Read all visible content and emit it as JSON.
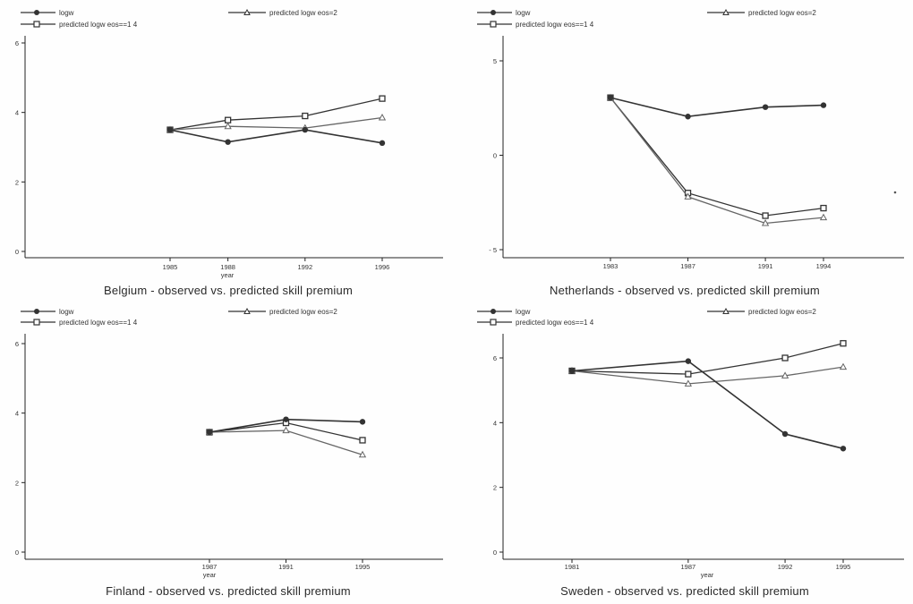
{
  "legend": {
    "series_1": "logw",
    "series_2": "predicted logw  eos=2",
    "series_3": "predicted logw  eos==1 4"
  },
  "colors": {
    "line": "#333333",
    "marker_fill": "#333333",
    "open_marker": "#ffffff"
  },
  "chart_data": [
    {
      "type": "line",
      "title": "Belgium - observed vs. predicted skill premium",
      "xlabel": "year",
      "ylabel": "",
      "x": [
        1985,
        1988,
        1992,
        1996
      ],
      "xticks": [
        "1985",
        "1988",
        "1992",
        "1996"
      ],
      "ylim": [
        0,
        6
      ],
      "yticks": [
        "0",
        "2",
        "4",
        "6"
      ],
      "series": [
        {
          "name": "logw",
          "marker": "filled-circle",
          "values": [
            3.5,
            3.15,
            3.5,
            3.12
          ]
        },
        {
          "name": "predicted logw  eos=2",
          "marker": "triangle",
          "values": [
            3.5,
            3.6,
            3.55,
            3.85
          ]
        },
        {
          "name": "predicted logw  eos==1 4",
          "marker": "square",
          "values": [
            3.5,
            3.78,
            3.9,
            4.4
          ]
        }
      ]
    },
    {
      "type": "line",
      "title": "Netherlands - observed vs. predicted skill premium",
      "xlabel": "",
      "ylabel": "",
      "x": [
        1983,
        1987,
        1991,
        1994
      ],
      "xticks": [
        "1983",
        "1987",
        "1991",
        "1994"
      ],
      "ylim": [
        -5,
        5
      ],
      "yticks": [
        "- 5",
        "0",
        "5"
      ],
      "series": [
        {
          "name": "logw",
          "marker": "filled-circle",
          "values": [
            3.05,
            2.05,
            2.55,
            2.65
          ]
        },
        {
          "name": "predicted logw  eos=2",
          "marker": "triangle",
          "values": [
            3.05,
            -2.2,
            -3.6,
            -3.3
          ]
        },
        {
          "name": "predicted logw  eos==1 4",
          "marker": "square",
          "values": [
            3.05,
            -2.0,
            -3.2,
            -2.8
          ]
        }
      ]
    },
    {
      "type": "line",
      "title": "Finland - observed vs. predicted skill premium",
      "xlabel": "year",
      "ylabel": "",
      "x": [
        1987,
        1991,
        1995
      ],
      "xticks": [
        "1987",
        "1991",
        "1995"
      ],
      "ylim": [
        0,
        6
      ],
      "yticks": [
        "0",
        "2",
        "4",
        "6"
      ],
      "series": [
        {
          "name": "logw",
          "marker": "filled-circle",
          "values": [
            3.45,
            3.82,
            3.75
          ]
        },
        {
          "name": "predicted logw  eos=2",
          "marker": "triangle",
          "values": [
            3.45,
            3.5,
            2.8
          ]
        },
        {
          "name": "predicted logw  eos==1 4",
          "marker": "square",
          "values": [
            3.45,
            3.72,
            3.22
          ]
        }
      ]
    },
    {
      "type": "line",
      "title": "Sweden - observed vs. predicted skill premium",
      "xlabel": "year",
      "ylabel": "",
      "x": [
        1981,
        1987,
        1992,
        1995
      ],
      "xticks": [
        "1981",
        "1987",
        "1992",
        "1995"
      ],
      "ylim": [
        0,
        6
      ],
      "yticks": [
        "0",
        "2",
        "4",
        "6"
      ],
      "series": [
        {
          "name": "logw",
          "marker": "filled-circle",
          "values": [
            5.6,
            5.9,
            3.65,
            3.2
          ]
        },
        {
          "name": "predicted logw  eos=2",
          "marker": "triangle",
          "values": [
            5.6,
            5.2,
            5.45,
            5.72
          ]
        },
        {
          "name": "predicted logw  eos==1 4",
          "marker": "square",
          "values": [
            5.6,
            5.5,
            6.0,
            6.45
          ]
        }
      ]
    }
  ]
}
